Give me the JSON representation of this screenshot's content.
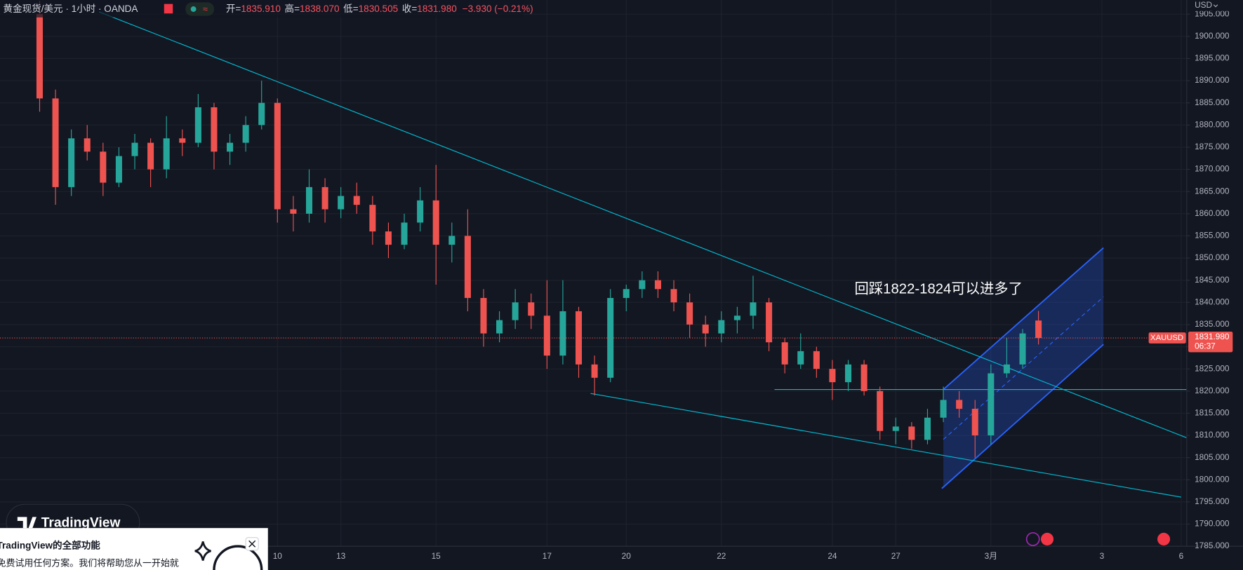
{
  "header": {
    "symbol": "黄金现货/美元 · 1小时 · OANDA",
    "ohlc": [
      {
        "label": "开=",
        "value": "1835.910"
      },
      {
        "label": "高=",
        "value": "1838.070"
      },
      {
        "label": "低=",
        "value": "1830.505"
      },
      {
        "label": "收=",
        "value": "1831.980"
      }
    ],
    "change": "−3.930 (−0.21%)"
  },
  "chart_data": {
    "type": "candlestick",
    "categories": [
      null,
      null,
      null,
      null,
      null,
      null,
      null,
      null,
      null,
      null,
      null,
      null,
      null,
      null,
      null,
      "10",
      null,
      null,
      null,
      "13",
      null,
      null,
      null,
      null,
      null,
      "15",
      null,
      null,
      null,
      null,
      null,
      null,
      "17",
      null,
      null,
      null,
      null,
      "20",
      null,
      null,
      null,
      null,
      null,
      "22",
      null,
      null,
      null,
      null,
      null,
      null,
      "24",
      null,
      null,
      null,
      "27",
      null,
      null,
      null,
      null,
      null,
      "3月",
      null,
      null,
      null,
      null,
      null,
      null,
      "3",
      null,
      null,
      null,
      null,
      "6"
    ],
    "open": [
      1905,
      1886,
      1866,
      1877,
      1874,
      1867,
      1873,
      1876,
      1870,
      1877,
      1876,
      1884,
      1874,
      1876,
      1880,
      1885,
      1861,
      1860,
      1866,
      1861,
      1864,
      1862,
      1856,
      1853,
      1858,
      1863,
      1853,
      1855,
      1841,
      1833,
      1836,
      1840,
      1837,
      1828,
      1838,
      1826,
      1823,
      1841,
      1843,
      1845,
      1843,
      1840,
      1835,
      1833,
      1836,
      1837,
      1840,
      1831,
      1826,
      1829,
      1825,
      1822,
      1826,
      1820,
      1811,
      1812,
      1809,
      1814,
      1818,
      1816,
      1810,
      1824,
      1826,
      1835.91,
      null,
      null,
      null,
      null,
      null,
      null,
      null,
      null,
      null
    ],
    "high": [
      1908,
      1888,
      1879,
      1880,
      1876,
      1875,
      1878,
      1877,
      1882,
      1879,
      1887,
      1885,
      1878,
      1882,
      1890,
      1886,
      1864,
      1870,
      1868,
      1866,
      1867,
      1864,
      1858,
      1860,
      1866,
      1871,
      1858,
      1861,
      1843,
      1838,
      1843,
      1842,
      1845,
      1845,
      1839,
      1828,
      1843,
      1844,
      1847,
      1847,
      1845,
      1842,
      1837,
      1838,
      1839,
      1846,
      1841,
      1832,
      1833,
      1830,
      1827,
      1827,
      1827,
      1821,
      1814,
      1813,
      1816,
      1821,
      1820,
      1818,
      1826,
      1832,
      1834,
      1838.07,
      null,
      null,
      null,
      null,
      null,
      null,
      null,
      null,
      null
    ],
    "low": [
      1883,
      1862,
      1864,
      1872,
      1864,
      1866,
      1870,
      1866,
      1868,
      1873,
      1875,
      1870,
      1871,
      1874,
      1879,
      1858,
      1856,
      1858,
      1858,
      1859,
      1860,
      1853,
      1850,
      1852,
      1856,
      1844,
      1849,
      1838,
      1830,
      1831,
      1834,
      1834,
      1825,
      1826,
      1823,
      1819,
      1822,
      1838,
      1841,
      1841,
      1838,
      1832,
      1830,
      1831,
      1833,
      1834,
      1829,
      1824,
      1825,
      1823,
      1818,
      1820,
      1819,
      1809,
      1808,
      1807,
      1808,
      1813,
      1814,
      1805,
      1808,
      1823,
      1825,
      1830.505,
      null,
      null,
      null,
      null,
      null,
      null,
      null,
      null,
      null
    ],
    "close": [
      1886,
      1866,
      1877,
      1874,
      1867,
      1873,
      1876,
      1870,
      1877,
      1876,
      1884,
      1874,
      1876,
      1880,
      1885,
      1861,
      1860,
      1866,
      1861,
      1864,
      1862,
      1856,
      1853,
      1858,
      1863,
      1853,
      1855,
      1841,
      1833,
      1836,
      1840,
      1837,
      1828,
      1838,
      1826,
      1823,
      1841,
      1843,
      1845,
      1843,
      1840,
      1835,
      1833,
      1836,
      1837,
      1840,
      1831,
      1826,
      1829,
      1825,
      1822,
      1826,
      1820,
      1811,
      1812,
      1809,
      1814,
      1818,
      1816,
      1810,
      1824,
      1826,
      1833,
      1831.98,
      null,
      null,
      null,
      null,
      null,
      null,
      null,
      null,
      null
    ],
    "up_color": "#26a69a",
    "down_color": "#ef5350",
    "ylim": [
      1785,
      1908.2
    ],
    "yticks": [
      {
        "value": 1785,
        "label": "1785.000"
      },
      {
        "value": 1790,
        "label": "1790.000"
      },
      {
        "value": 1795,
        "label": "1795.000"
      },
      {
        "value": 1800,
        "label": "1800.000"
      },
      {
        "value": 1805,
        "label": "1805.000"
      },
      {
        "value": 1810,
        "label": "1810.000"
      },
      {
        "value": 1815,
        "label": "1815.000"
      },
      {
        "value": 1820,
        "label": "1820.000"
      },
      {
        "value": 1825,
        "label": "1825.000"
      },
      {
        "value": 1830,
        "label": "1830.000"
      },
      {
        "value": 1835,
        "label": "1835.000"
      },
      {
        "value": 1840,
        "label": "1840.000"
      },
      {
        "value": 1845,
        "label": "1845.000"
      },
      {
        "value": 1850,
        "label": "1850.000"
      },
      {
        "value": 1855,
        "label": "1855.000"
      },
      {
        "value": 1860,
        "label": "1860.000"
      },
      {
        "value": 1865,
        "label": "1865.000"
      },
      {
        "value": 1870,
        "label": "1870.000"
      },
      {
        "value": 1875,
        "label": "1875.000"
      },
      {
        "value": 1880,
        "label": "1880.000"
      },
      {
        "value": 1885,
        "label": "1885.000"
      },
      {
        "value": 1890,
        "label": "1890.000"
      },
      {
        "value": 1895,
        "label": "1895.000"
      },
      {
        "value": 1900,
        "label": "1900.000"
      },
      {
        "value": 1905,
        "label": "1905.000"
      }
    ],
    "grid": true,
    "currency": "USD",
    "symbol_label": "XAUUSD",
    "price_label": "1831.980",
    "countdown": "06:37",
    "annotation": "回踩1822-1824可以进多了"
  },
  "popup": {
    "brand": "TradingView",
    "title": "TradingView的全部功能",
    "text": "免费试用任何方案。我们将帮助您从一开始就"
  }
}
